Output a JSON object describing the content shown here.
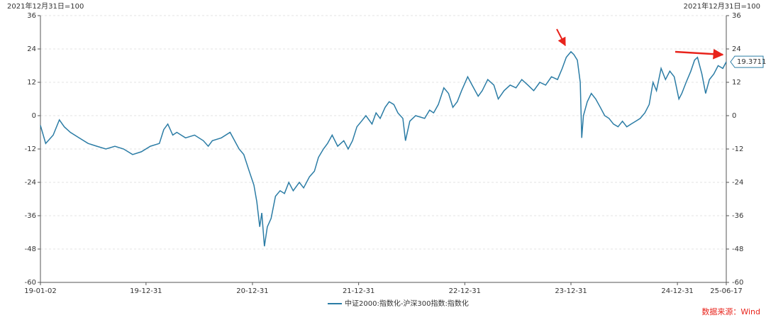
{
  "chart_data": {
    "type": "line",
    "y_label": "2021年12月31日=100",
    "y2_label": "2021年12月31日=100",
    "source": "数据来源：Wind",
    "x": [
      "19-01-02",
      "19-01-20",
      "19-02-15",
      "19-03-08",
      "19-03-25",
      "19-04-15",
      "19-05-15",
      "19-06-15",
      "19-07-15",
      "19-08-15",
      "19-09-15",
      "19-10-15",
      "19-11-15",
      "19-12-15",
      "20-01-15",
      "20-02-15",
      "20-03-01",
      "20-03-15",
      "20-04-01",
      "20-04-15",
      "20-05-15",
      "20-06-15",
      "20-07-15",
      "20-08-01",
      "20-08-15",
      "20-09-15",
      "20-10-15",
      "20-11-15",
      "20-12-01",
      "20-12-20",
      "21-01-05",
      "21-01-15",
      "21-01-25",
      "21-02-01",
      "21-02-10",
      "21-02-20",
      "21-03-05",
      "21-03-20",
      "21-04-05",
      "21-04-20",
      "21-05-05",
      "21-05-20",
      "21-06-10",
      "21-06-25",
      "21-07-15",
      "21-08-01",
      "21-08-15",
      "21-09-01",
      "21-09-15",
      "21-10-01",
      "21-10-20",
      "21-11-10",
      "21-11-25",
      "21-12-10",
      "21-12-25",
      "22-01-10",
      "22-01-25",
      "22-02-15",
      "22-03-01",
      "22-03-15",
      "22-04-01",
      "22-04-15",
      "22-05-01",
      "22-05-15",
      "22-06-01",
      "22-06-10",
      "22-06-25",
      "22-07-15",
      "22-08-15",
      "22-09-01",
      "22-09-15",
      "22-10-01",
      "22-10-20",
      "22-11-05",
      "22-11-20",
      "22-12-05",
      "22-12-20",
      "23-01-10",
      "23-01-25",
      "23-02-15",
      "23-03-01",
      "23-03-20",
      "23-04-10",
      "23-04-25",
      "23-05-15",
      "23-06-05",
      "23-06-25",
      "23-07-15",
      "23-08-05",
      "23-08-25",
      "23-09-15",
      "23-10-05",
      "23-10-25",
      "23-11-15",
      "23-12-01",
      "23-12-15",
      "23-12-31",
      "24-01-10",
      "24-01-22",
      "24-02-01",
      "24-02-06",
      "24-02-12",
      "24-02-25",
      "24-03-10",
      "24-03-25",
      "24-04-10",
      "24-04-25",
      "24-05-10",
      "24-05-25",
      "24-06-10",
      "24-06-25",
      "24-07-10",
      "24-07-25",
      "24-08-10",
      "24-08-25",
      "24-09-10",
      "24-09-25",
      "24-10-08",
      "24-10-20",
      "24-11-05",
      "24-11-20",
      "24-12-05",
      "24-12-20",
      "25-01-05",
      "25-01-15",
      "25-01-30",
      "25-02-15",
      "25-02-28",
      "25-03-10",
      "25-03-25",
      "25-04-07",
      "25-04-20",
      "25-05-05",
      "25-05-20",
      "25-06-05",
      "25-06-17"
    ],
    "series": [
      {
        "name": "中证2000:指数化-沪深300指数:指数化",
        "color": "#2b7ca5",
        "values": [
          -3.5,
          -10,
          -7,
          -1.5,
          -4,
          -6,
          -8,
          -10,
          -11,
          -12,
          -11,
          -12,
          -14,
          -13,
          -11,
          -10,
          -5,
          -3,
          -7,
          -6,
          -8,
          -7,
          -9,
          -11,
          -9,
          -8,
          -6,
          -12,
          -14,
          -20,
          -25,
          -31,
          -40,
          -35,
          -47,
          -40,
          -37,
          -29,
          -27,
          -28,
          -24,
          -27,
          -24,
          -26,
          -22,
          -20,
          -15,
          -12,
          -10,
          -7,
          -11,
          -9,
          -12,
          -9,
          -4,
          -2,
          0,
          -3,
          1,
          -1,
          3,
          5,
          4,
          1,
          -1,
          -9,
          -2,
          0,
          -1,
          2,
          1,
          4,
          10,
          8,
          3,
          5,
          9,
          14,
          11,
          7,
          9,
          13,
          11,
          6,
          9,
          11,
          10,
          13,
          11,
          9,
          12,
          11,
          14,
          13,
          17,
          21,
          23,
          22,
          20,
          12,
          -8,
          0,
          5,
          8,
          6,
          3,
          0,
          -1,
          -3,
          -4,
          -2,
          -4,
          -3,
          -2,
          -1,
          1,
          4,
          12,
          9,
          17,
          13,
          16,
          14,
          6,
          8,
          12,
          16,
          20,
          21,
          15,
          8,
          13,
          15,
          18,
          17,
          19.3711
        ]
      }
    ],
    "xlim": [
      "19-01-02",
      "25-06-17"
    ],
    "xticks": [
      "19-01-02",
      "19-12-31",
      "20-12-31",
      "21-12-31",
      "22-12-31",
      "23-12-31",
      "24-12-31",
      "25-06-17"
    ],
    "ylim": [
      -60,
      36
    ],
    "yticks": [
      -60,
      -48,
      -36,
      -24,
      -12,
      0,
      12,
      24,
      36
    ],
    "y2lim": [
      -60,
      36
    ],
    "y2ticks": [
      -60,
      -48,
      -36,
      -24,
      -12,
      0,
      12,
      24,
      36
    ],
    "grid": true
  }
}
